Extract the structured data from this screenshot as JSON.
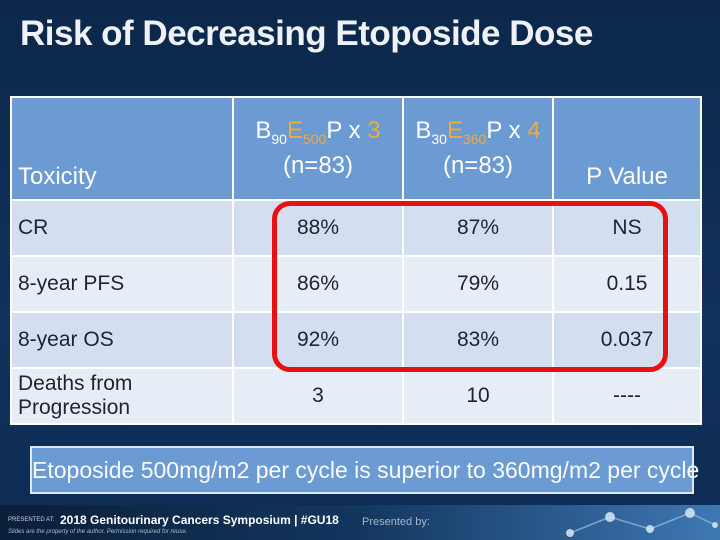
{
  "slide": {
    "title": "Risk of Decreasing Etoposide Dose",
    "table": {
      "headers": {
        "toxicity": "Toxicity",
        "arm1": {
          "b": "B",
          "b_sub": "90",
          "e": "E",
          "e_sub": "500",
          "p": "P x ",
          "cycles": "3",
          "n": "(n=83)"
        },
        "arm2": {
          "b": "B",
          "b_sub": "30",
          "e": "E",
          "e_sub": "360",
          "p": "P x ",
          "cycles": "4",
          "n": "(n=83)"
        },
        "pvalue": "P Value"
      },
      "rows": [
        {
          "label": "CR",
          "arm1": "88%",
          "arm2": "87%",
          "p": "NS"
        },
        {
          "label": "8-year PFS",
          "arm1": "86%",
          "arm2": "79%",
          "p": "0.15"
        },
        {
          "label": "8-year OS",
          "arm1": "92%",
          "arm2": "83%",
          "p": "0.037"
        },
        {
          "label": "Deaths from Progression",
          "arm1": "3",
          "arm2": "10",
          "p": "----"
        }
      ]
    },
    "banner": "Etoposide 500mg/m2 per cycle is superior to 360mg/m2 per cycle"
  },
  "footer": {
    "presented_at": "PRESENTED AT:",
    "symposium": "2018 Genitourinary Cancers Symposium | #GU18",
    "property": "Slides are the property of the author. Permission required for reuse.",
    "presented_by": "Presented by:"
  },
  "colors": {
    "header_bg": "#6b9bd2",
    "highlight": "#f2a93b",
    "red_box": "#e81010",
    "row_a": "#d3dff0",
    "row_b": "#e6edf7"
  }
}
